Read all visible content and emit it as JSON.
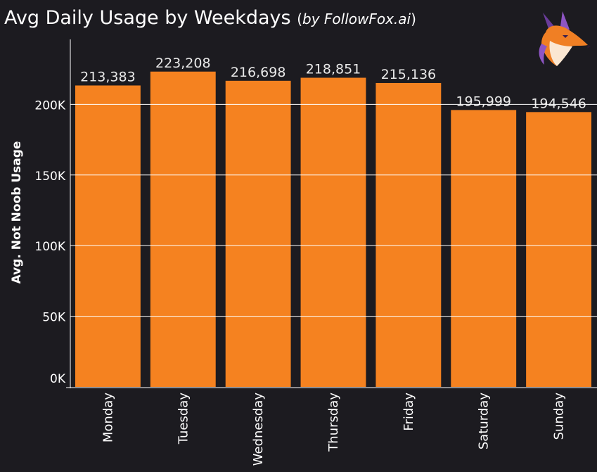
{
  "title": {
    "main": "Avg Daily Usage by Weekdays",
    "open_paren": "(",
    "sub": "by FollowFox.ai",
    "close_paren": ")"
  },
  "logo_icon": "fox-head-logo",
  "colors": {
    "background": "#1c1b20",
    "bar": "#f58220",
    "grid": "#ffffff",
    "text": "#ffffff",
    "value_label": "#e9e9e9"
  },
  "chart_data": {
    "type": "bar",
    "title": "Avg Daily Usage by Weekdays (by FollowFox.ai)",
    "xlabel": "",
    "ylabel": "Avg. Not Noob Usage",
    "categories": [
      "Monday",
      "Tuesday",
      "Wednesday",
      "Thursday",
      "Friday",
      "Saturday",
      "Sunday"
    ],
    "values": [
      213383,
      223208,
      216698,
      218851,
      215136,
      195999,
      194546
    ],
    "value_labels": [
      "213,383",
      "223,208",
      "216,698",
      "218,851",
      "215,136",
      "195,999",
      "194,546"
    ],
    "yticks": [
      0,
      50000,
      100000,
      150000,
      200000
    ],
    "ytick_labels": [
      "0K",
      "50K",
      "100K",
      "150K",
      "200K"
    ],
    "ylim": [
      0,
      246000
    ],
    "grid": true,
    "legend": "none"
  }
}
